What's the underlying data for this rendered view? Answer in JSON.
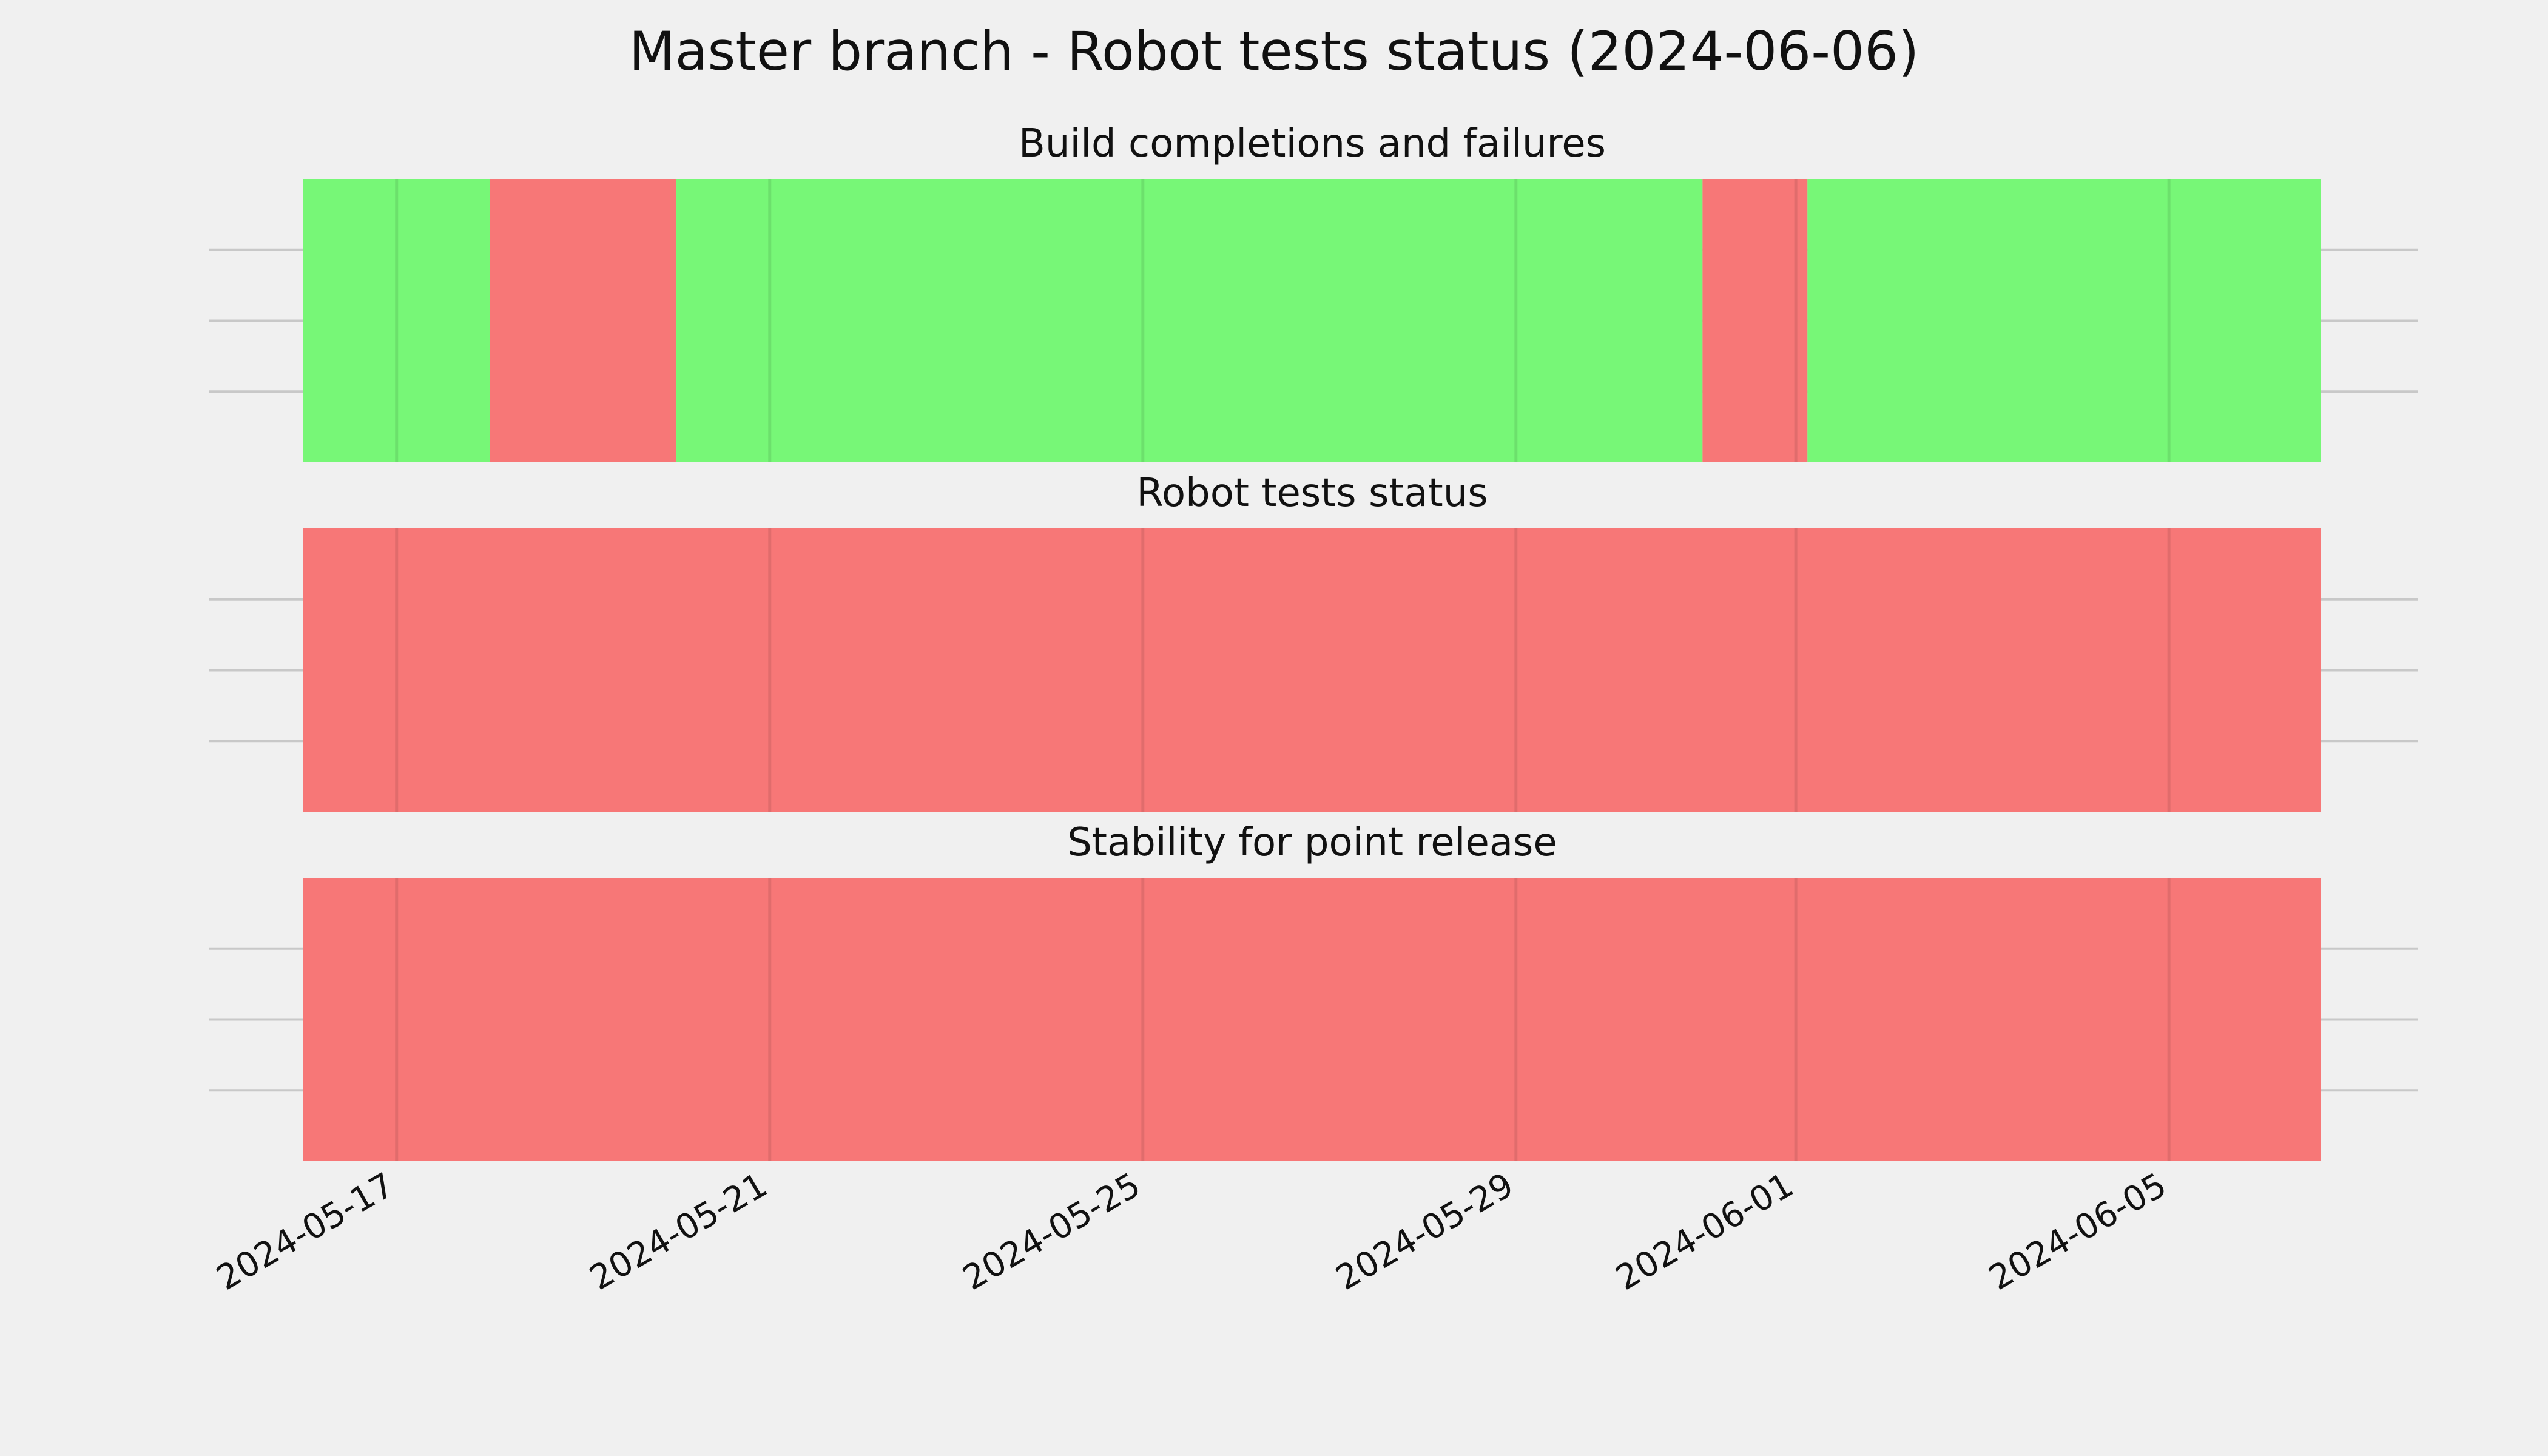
{
  "chart_data": {
    "type": "timeline",
    "title": "Master branch - Robot tests status (2024-06-06)",
    "x_axis": {
      "type": "date",
      "range": [
        "2024-05-16",
        "2024-06-06"
      ],
      "ticks": [
        "2024-05-17",
        "2024-05-21",
        "2024-05-25",
        "2024-05-29",
        "2024-06-01",
        "2024-06-05"
      ]
    },
    "grid": true,
    "status_colors": {
      "pass": "#77f777",
      "fail": "#f77777"
    },
    "panels": [
      {
        "title": "Build completions and failures",
        "segments": [
          {
            "start": "2024-05-16T00:00",
            "end": "2024-05-18T00:00",
            "status": "pass"
          },
          {
            "start": "2024-05-18T00:00",
            "end": "2024-05-20T00:00",
            "status": "fail"
          },
          {
            "start": "2024-05-20T00:00",
            "end": "2024-05-31T00:00",
            "status": "pass"
          },
          {
            "start": "2024-05-31T00:00",
            "end": "2024-06-01T03:00",
            "status": "fail"
          },
          {
            "start": "2024-06-01T03:00",
            "end": "2024-06-06T15:00",
            "status": "pass"
          }
        ]
      },
      {
        "title": "Robot tests status",
        "segments": [
          {
            "start": "2024-05-16T00:00",
            "end": "2024-06-06T15:00",
            "status": "fail"
          }
        ]
      },
      {
        "title": "Stability for point release",
        "segments": [
          {
            "start": "2024-05-16T00:00",
            "end": "2024-06-06T15:00",
            "status": "fail"
          }
        ]
      }
    ]
  }
}
